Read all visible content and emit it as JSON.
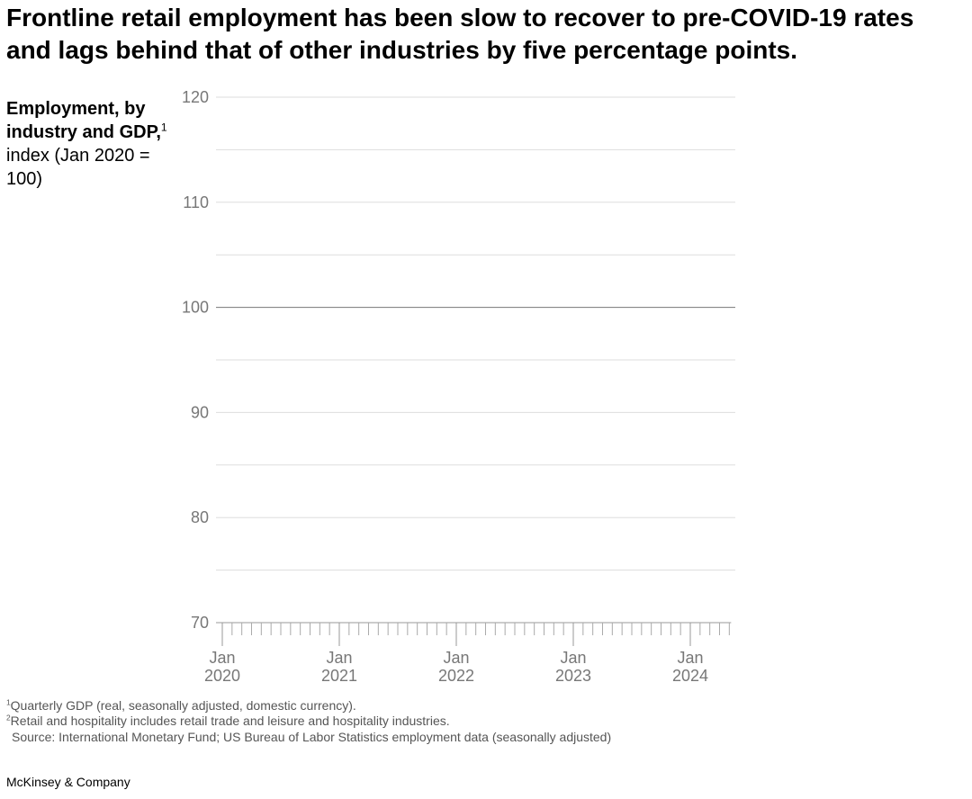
{
  "chart_data": {
    "type": "line",
    "title": "Frontline retail employment has been slow to recover to pre-COVID-19 rates and lags behind that of other industries by five percentage points.",
    "ylabel": {
      "bold": "Employment, by industry and GDP,",
      "marker": "1",
      "text": "index (Jan 2020 = 100)"
    },
    "ylim": [
      70,
      120
    ],
    "yticks": [
      70,
      80,
      90,
      100,
      110,
      120
    ],
    "yminorticks": [
      75,
      85,
      95,
      105,
      115
    ],
    "reference_line": 100,
    "grid": true,
    "xlim": [
      "2020-01",
      "2024-05"
    ],
    "xticks": [
      {
        "value": "2020-01",
        "label": [
          "Jan",
          "2020"
        ]
      },
      {
        "value": "2021-01",
        "label": [
          "Jan",
          "2021"
        ]
      },
      {
        "value": "2022-01",
        "label": [
          "Jan",
          "2022"
        ]
      },
      {
        "value": "2023-01",
        "label": [
          "Jan",
          "2023"
        ]
      },
      {
        "value": "2024-01",
        "label": [
          "Jan",
          "2024"
        ]
      }
    ],
    "xminorticks": [
      "2020-01",
      "2020-02",
      "2020-03",
      "2020-04",
      "2020-05",
      "2020-06",
      "2020-07",
      "2020-08",
      "2020-09",
      "2020-10",
      "2020-11",
      "2020-12",
      "2021-01",
      "2021-02",
      "2021-03",
      "2021-04",
      "2021-05",
      "2021-06",
      "2021-07",
      "2021-08",
      "2021-09",
      "2021-10",
      "2021-11",
      "2021-12",
      "2022-01",
      "2022-02",
      "2022-03",
      "2022-04",
      "2022-05",
      "2022-06",
      "2022-07",
      "2022-08",
      "2022-09",
      "2022-10",
      "2022-11",
      "2022-12",
      "2023-01",
      "2023-02",
      "2023-03",
      "2023-04",
      "2023-05",
      "2023-06",
      "2023-07",
      "2023-08",
      "2023-09",
      "2023-10",
      "2023-11",
      "2023-12",
      "2024-01",
      "2024-02",
      "2024-03",
      "2024-04",
      "2024-05"
    ],
    "footnotes": [
      {
        "marker": "1",
        "text": "Quarterly GDP (real, seasonally adjusted, domestic currency)."
      },
      {
        "marker": "2",
        "text": "Retail and hospitality includes retail trade and leisure and hospitality industries."
      }
    ],
    "source": "Source: International Monetary Fund; US Bureau of Labor Statistics employment data (seasonally adjusted)",
    "brand": "McKinsey & Company"
  }
}
